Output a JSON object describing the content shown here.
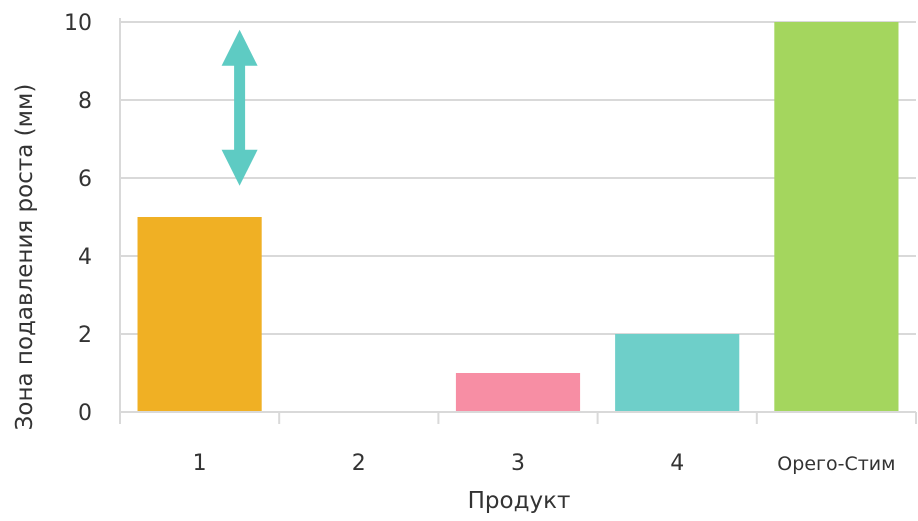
{
  "chart_data": {
    "type": "bar",
    "categories": [
      "1",
      "2",
      "3",
      "4",
      "Орего-Стим"
    ],
    "values": [
      5,
      0,
      1,
      2,
      10
    ],
    "colors": [
      "#f0b024",
      "#ffffff",
      "#f78ea4",
      "#6ecfc9",
      "#a4d65e"
    ],
    "xlabel": "Продукт",
    "ylabel": "Зона подавления роста (мм)",
    "ylim": [
      0,
      10
    ],
    "yticks": [
      0,
      2,
      4,
      6,
      8,
      10
    ],
    "grid": true,
    "annotation": {
      "type": "double-arrow",
      "category": "1",
      "from": 5.8,
      "to": 9.8,
      "color": "#5ecbc3"
    }
  }
}
